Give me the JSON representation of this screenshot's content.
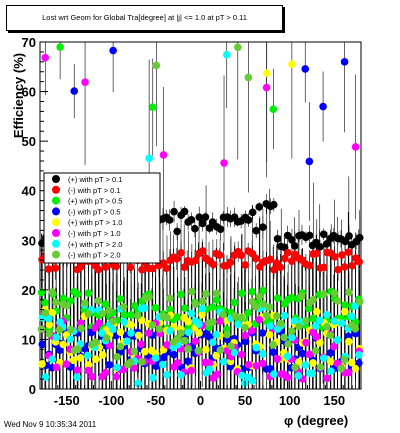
{
  "chart_data": {
    "type": "scatter",
    "title": "Lost wrt Geom for Global Tra[degree] at |j| <= 1.0 at pT > 0.11",
    "xlabel": "φ (degree)",
    "ylabel": "Efficiency (%)",
    "xlim": [
      -180,
      180
    ],
    "ylim": [
      0,
      70
    ],
    "xticks": [
      -150,
      -100,
      -50,
      0,
      50,
      100,
      150
    ],
    "yticks": [
      0,
      10,
      20,
      30,
      40,
      50,
      60,
      70
    ],
    "grid": false,
    "legend_position": "left-middle",
    "series": [
      {
        "name": "(+) with pT > 0.1",
        "color": "#000000",
        "typical": 30,
        "spread": 1.5
      },
      {
        "name": "(-) with pT > 0.1",
        "color": "#ff0000",
        "typical": 26,
        "spread": 2
      },
      {
        "name": "(+) with pT > 0.5",
        "color": "#00ee00",
        "typical": 16,
        "spread": 4
      },
      {
        "name": "(-) with pT > 0.5",
        "color": "#0000ff",
        "typical": 8,
        "spread": 4
      },
      {
        "name": "(+) with pT > 1.0",
        "color": "#ffff00",
        "typical": 10,
        "spread": 6
      },
      {
        "name": "(-) with pT > 1.0",
        "color": "#ff00ff",
        "typical": 8,
        "spread": 6
      },
      {
        "name": "(+) with pT > 2.0",
        "color": "#00ffff",
        "typical": 9,
        "spread": 8
      },
      {
        "name": "(-) with pT > 2.0",
        "color": "#66cc33",
        "typical": 12,
        "spread": 8
      }
    ]
  },
  "footer": "Wed Nov  9 10:35:34 2011"
}
